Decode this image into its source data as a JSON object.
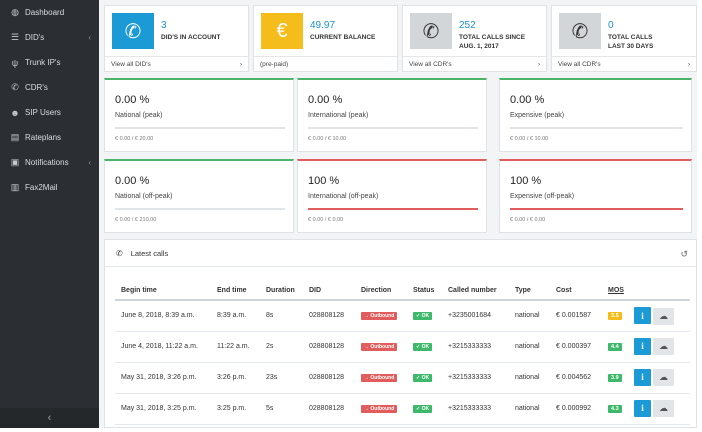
{
  "sidebar": {
    "items": [
      {
        "label": "Dashboard",
        "icon": "dashboard-icon",
        "glyph": "◍",
        "chevron": false
      },
      {
        "label": "DID's",
        "icon": "list-icon",
        "glyph": "☰",
        "chevron": true
      },
      {
        "label": "Trunk IP's",
        "icon": "trunk-icon",
        "glyph": "ψ",
        "chevron": false
      },
      {
        "label": "CDR's",
        "icon": "phone-icon",
        "glyph": "✆",
        "chevron": false
      },
      {
        "label": "SIP Users",
        "icon": "users-icon",
        "glyph": "☻",
        "chevron": false
      },
      {
        "label": "Rateplans",
        "icon": "rateplans-icon",
        "glyph": "▤",
        "chevron": false
      },
      {
        "label": "Notifications",
        "icon": "notifications-icon",
        "glyph": "▣",
        "chevron": true
      },
      {
        "label": "Fax2Mail",
        "icon": "fax-icon",
        "glyph": "▥",
        "chevron": false
      }
    ],
    "chevron_glyph": "‹",
    "collapse_glyph": "‹"
  },
  "stats": [
    {
      "value": "3",
      "label_line1": "DID'S IN ACCOUNT",
      "label_line2": "",
      "footer": "View all DID's",
      "arrow": "›",
      "box_color": "#1c9ad6",
      "glyph": "✆",
      "icon": "phone-icon"
    },
    {
      "value": "49.97",
      "label_line1": "CURRENT BALANCE",
      "label_line2": "",
      "footer": "(pre-paid)",
      "arrow": "",
      "box_color": "#f5bd1b",
      "glyph": "€",
      "icon": "euro-icon"
    },
    {
      "value": "252",
      "label_line1": "TOTAL CALLS SINCE",
      "label_line2": "AUG. 1, 2017",
      "footer": "View all CDR's",
      "arrow": "›",
      "box_color": "#d3d6d9",
      "glyph": "✆",
      "icon": "phone-ringing-icon"
    },
    {
      "value": "0",
      "label_line1": "TOTAL CALLS",
      "label_line2": "LAST 30 DAYS",
      "footer": "View all CDR's",
      "arrow": "›",
      "box_color": "#d3d6d9",
      "glyph": "✆",
      "icon": "phone-ringing-icon"
    }
  ],
  "limits": [
    {
      "pct": "0.00 %",
      "name": "National (peak)",
      "amount": "€ 0.00 / € 20.00",
      "fill": 0.0,
      "accent": "#4cb36b"
    },
    {
      "pct": "0.00 %",
      "name": "International (peak)",
      "amount": "€ 0.00 / € 10.00",
      "fill": 0.0,
      "accent": "#4cb36b"
    },
    {
      "pct": "0.00 %",
      "name": "Expensive (peak)",
      "amount": "€ 0.00 / € 10.00",
      "fill": 0.0,
      "accent": "#4cb36b"
    },
    {
      "pct": "0.00 %",
      "name": "National (off-peak)",
      "amount": "€ 0.00 / € 210.00",
      "fill": 0.0,
      "accent": "#4cb36b"
    },
    {
      "pct": "100 %",
      "name": "International (off-peak)",
      "amount": "€ 0.00 / € 0.00",
      "fill": 1.0,
      "accent": "#e15c5c"
    },
    {
      "pct": "100 %",
      "name": "Expensive (off-peak)",
      "amount": "€ 0.00 / € 0.00",
      "fill": 1.0,
      "accent": "#e15c5c"
    }
  ],
  "calls": {
    "title": "Latest calls",
    "title_glyph": "✆",
    "history_glyph": "↺",
    "columns": [
      "Begin time",
      "End time",
      "Duration",
      "DID",
      "Direction",
      "Status",
      "Called number",
      "Type",
      "Cost",
      "MOS"
    ],
    "rows": [
      {
        "begin": "June 8, 2018, 8:39 a.m.",
        "end": "8:39 a.m.",
        "duration": "8s",
        "did": "028808128",
        "direction": "→ Outbound",
        "status": "✓ OK",
        "called": "+3235001684",
        "type": "national",
        "cost": "€ 0.001587",
        "mos": "3.5",
        "mos_color": "#f5bd1b"
      },
      {
        "begin": "June 4, 2018, 11:22 a.m.",
        "end": "11:22 a.m.",
        "duration": "2s",
        "did": "028808128",
        "direction": "→ Outbound",
        "status": "✓ OK",
        "called": "+3215333333",
        "type": "national",
        "cost": "€ 0.000397",
        "mos": "4.4",
        "mos_color": "#3eb86a"
      },
      {
        "begin": "May 31, 2018, 3:26 p.m.",
        "end": "3:26 p.m.",
        "duration": "23s",
        "did": "028808128",
        "direction": "→ Outbound",
        "status": "✓ OK",
        "called": "+3215333333",
        "type": "national",
        "cost": "€ 0.004562",
        "mos": "3.9",
        "mos_color": "#3eb86a"
      },
      {
        "begin": "May 31, 2018, 3:25 p.m.",
        "end": "3:25 p.m.",
        "duration": "5s",
        "did": "028808128",
        "direction": "→ Outbound",
        "status": "✓ OK",
        "called": "+3215333333",
        "type": "national",
        "cost": "€ 0.000992",
        "mos": "4.3",
        "mos_color": "#3eb86a"
      }
    ],
    "info_glyph": "i",
    "download_glyph": "☁"
  }
}
